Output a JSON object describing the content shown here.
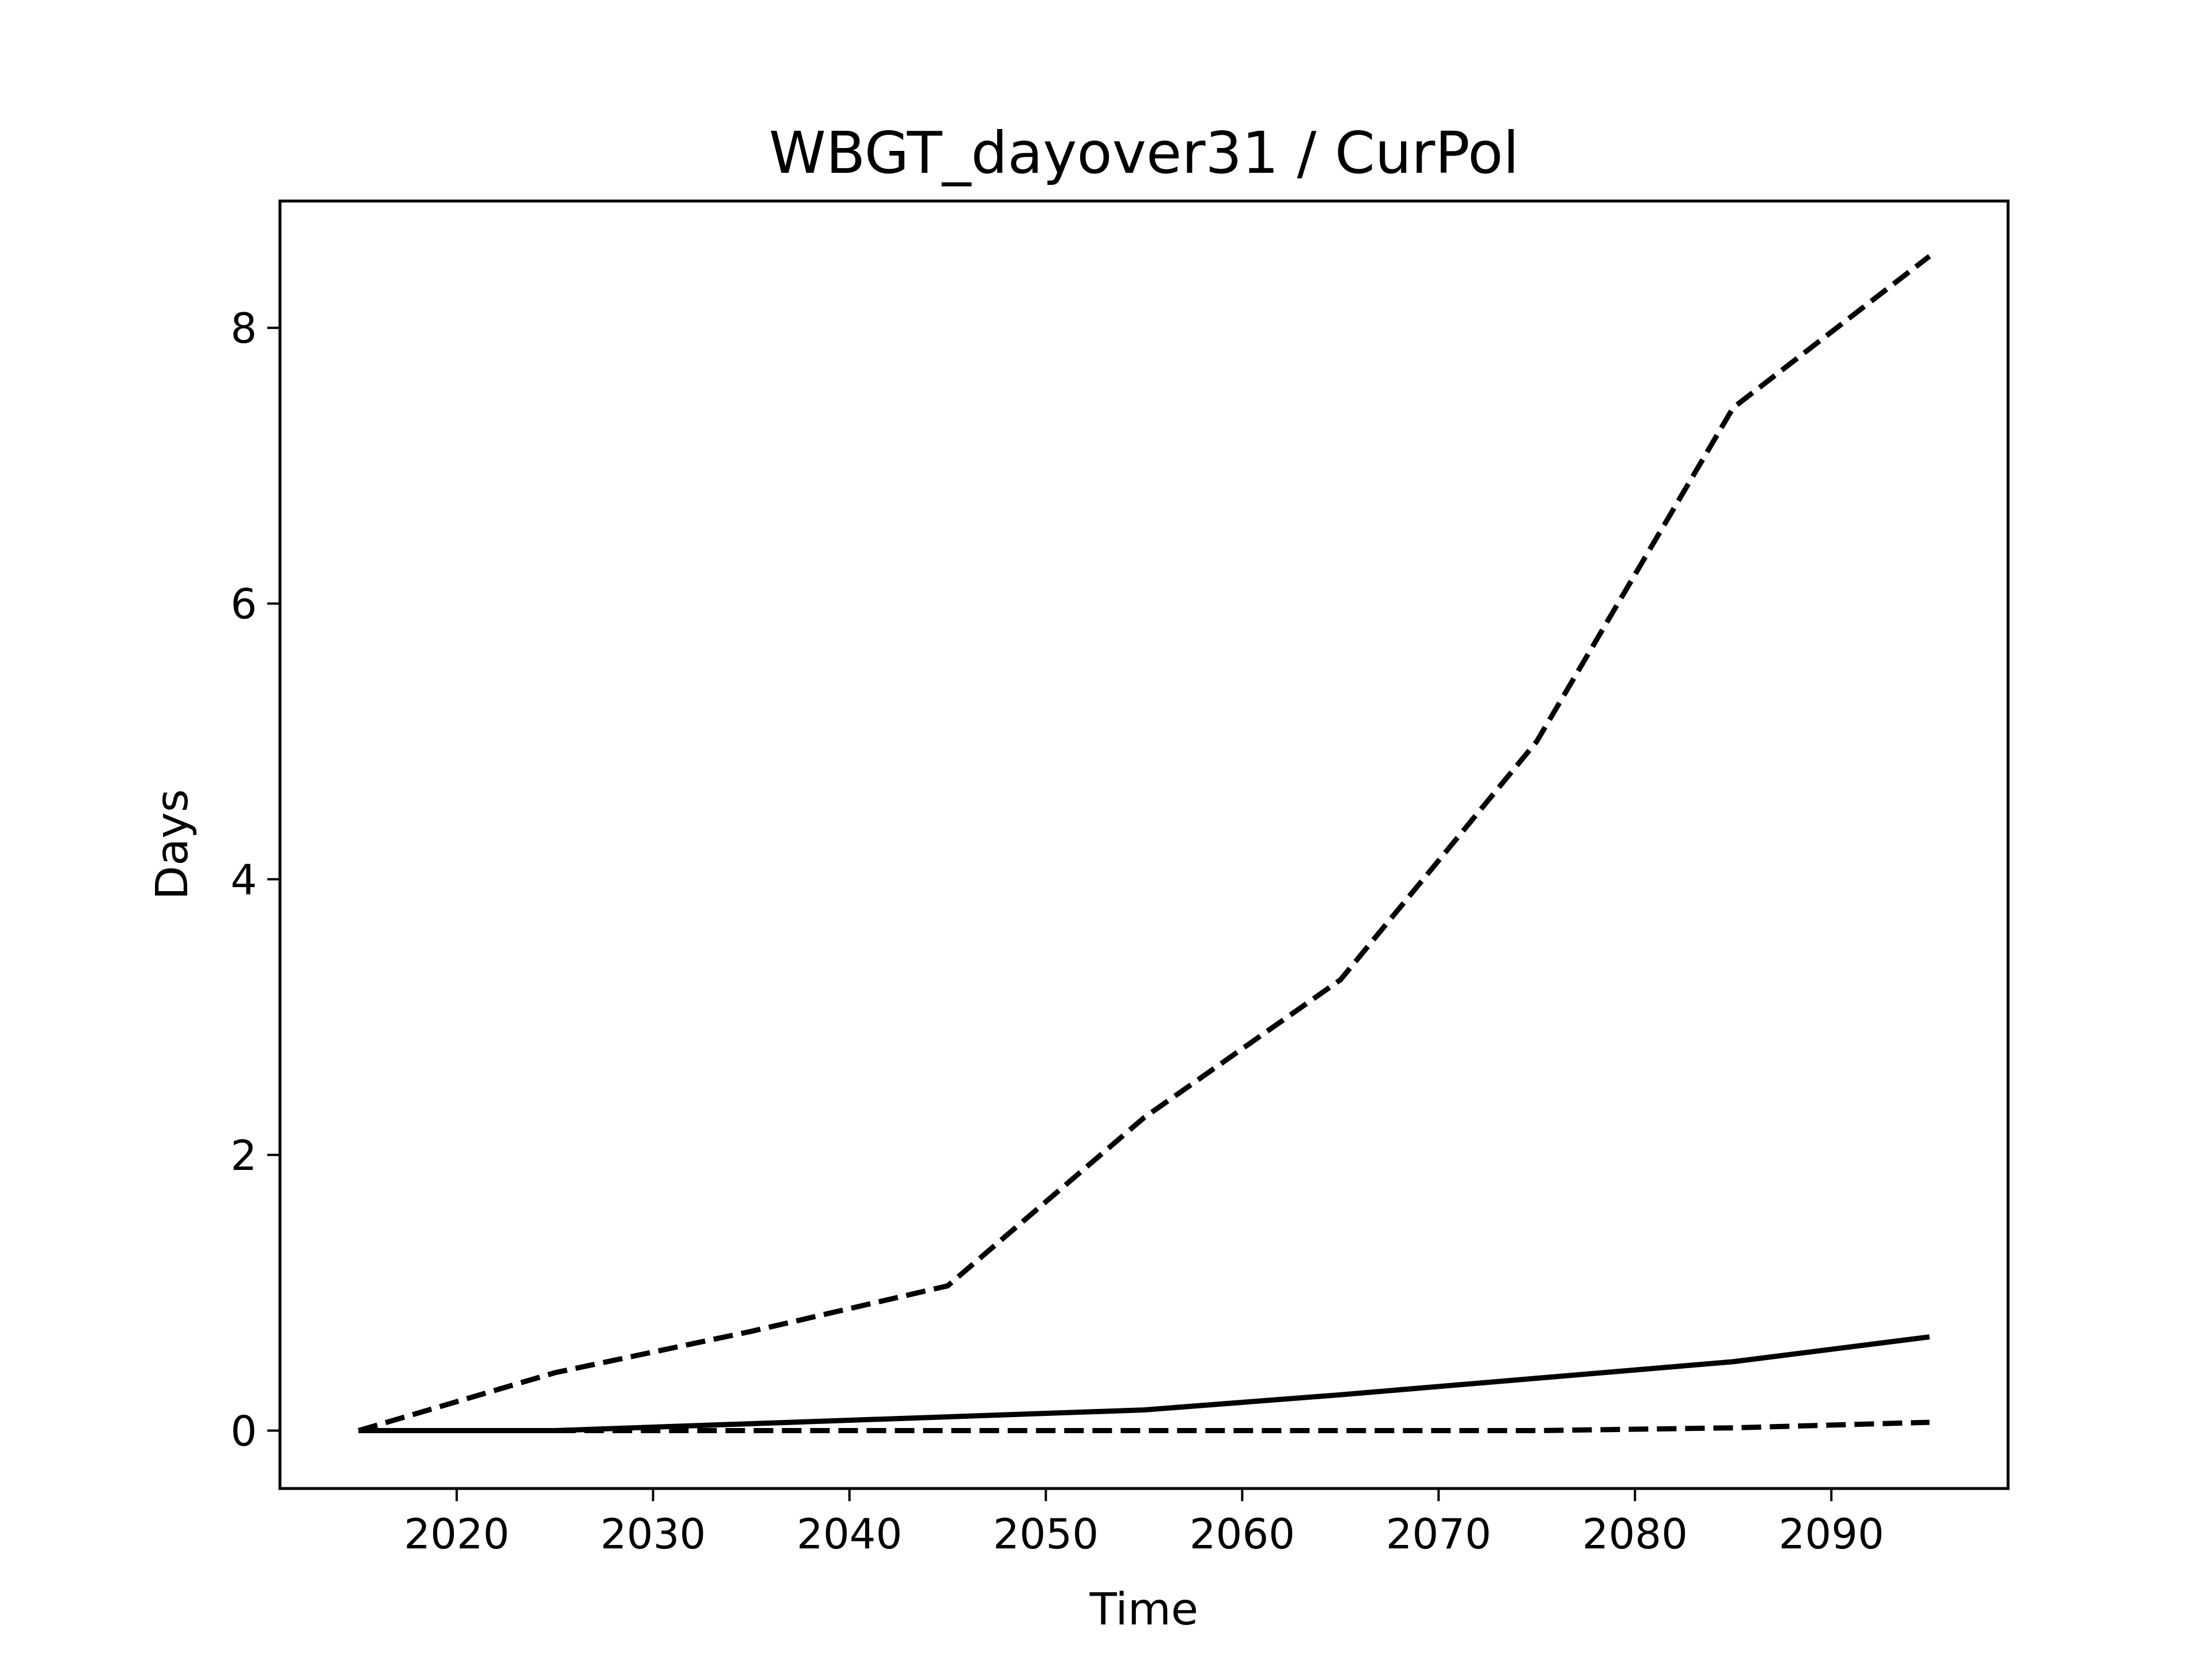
{
  "chart_data": {
    "type": "line",
    "title": "WBGT_dayover31 / CurPol",
    "xlabel": "Time",
    "ylabel": "Days",
    "xlim": [
      2011,
      2099
    ],
    "ylim": [
      -0.42,
      8.92
    ],
    "xticks": [
      2020,
      2030,
      2040,
      2050,
      2060,
      2070,
      2080,
      2090
    ],
    "yticks": [
      0,
      2,
      4,
      6,
      8
    ],
    "grid": false,
    "legend": "none",
    "x": [
      2015,
      2025,
      2035,
      2045,
      2055,
      2065,
      2075,
      2085,
      2095
    ],
    "series": [
      {
        "style": "dashed",
        "values": [
          0.0,
          0.42,
          0.72,
          1.05,
          2.27,
          3.27,
          5.0,
          7.42,
          8.52
        ]
      },
      {
        "style": "solid",
        "values": [
          0.0,
          0.0,
          0.05,
          0.1,
          0.15,
          0.26,
          0.38,
          0.5,
          0.68
        ]
      },
      {
        "style": "dashed",
        "values": [
          0.0,
          0.0,
          0.0,
          0.0,
          0.0,
          0.0,
          0.0,
          0.02,
          0.06
        ]
      }
    ],
    "colors": {
      "lines": "#000000",
      "axes": "#000000",
      "background": "#ffffff"
    }
  }
}
